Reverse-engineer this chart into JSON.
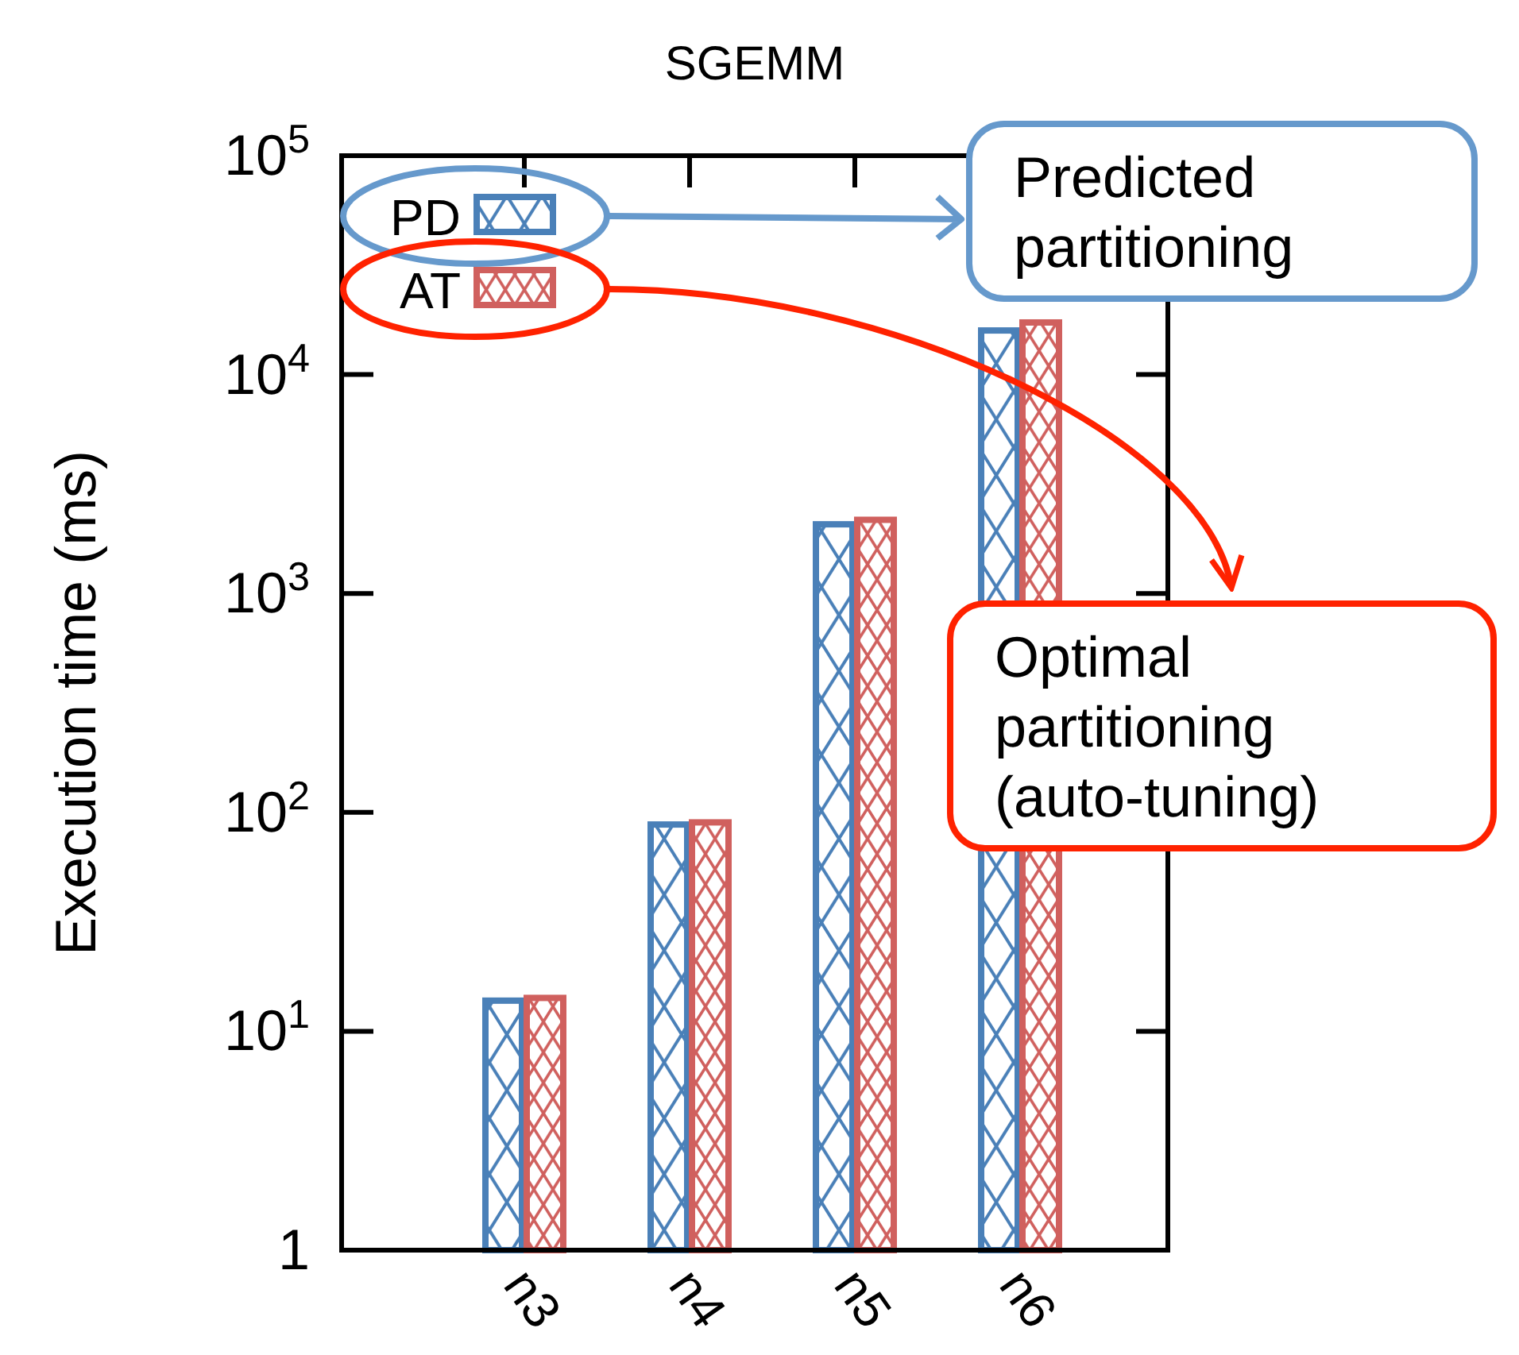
{
  "chart_data": {
    "type": "bar",
    "title": "SGEMM",
    "ylabel": "Execution time (ms)",
    "categories": [
      "n3",
      "n4",
      "n5",
      "n6"
    ],
    "series": [
      {
        "name": "PD",
        "color": "#4a80b8",
        "values": [
          13.8,
          88,
          2070,
          15900
        ]
      },
      {
        "name": "AT",
        "color": "#d0605e",
        "values": [
          14.2,
          90,
          2170,
          17300
        ]
      }
    ],
    "log": true,
    "ylim": [
      1,
      100000
    ],
    "yticks": [
      {
        "value": 1,
        "label": "1"
      },
      {
        "value": 10,
        "label": "10$^{1}$"
      },
      {
        "value": 100,
        "label": "10$^{2}$"
      },
      {
        "value": 1000,
        "label": "10$^{3}$"
      },
      {
        "value": 10000,
        "label": "10$^{4}$"
      },
      {
        "value": 100000,
        "label": "10$^{5}$"
      }
    ],
    "legend": "top left",
    "grid": false,
    "annotations": [
      "Predicted partitioning",
      "Optimal partitioning (auto-tuning)"
    ]
  }
}
